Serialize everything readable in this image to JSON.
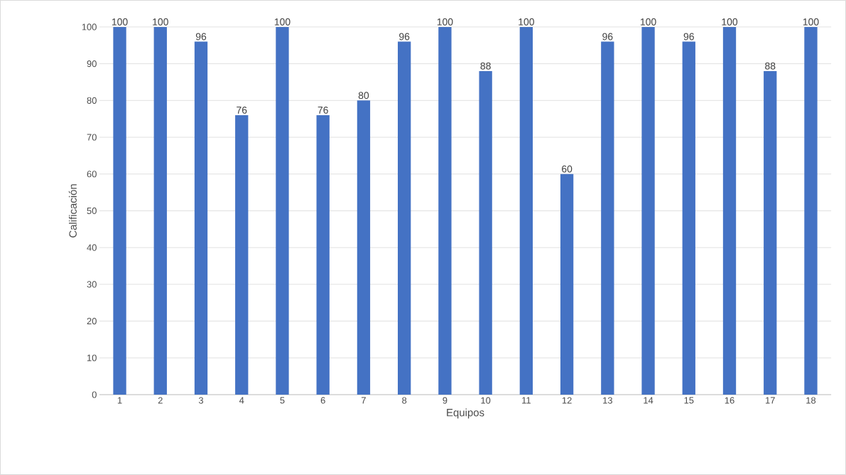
{
  "chart_data": {
    "type": "bar",
    "xlabel": "Equipos",
    "ylabel": "Calificación",
    "categories": [
      "1",
      "2",
      "3",
      "4",
      "5",
      "6",
      "7",
      "8",
      "9",
      "10",
      "11",
      "12",
      "13",
      "14",
      "15",
      "16",
      "17",
      "18"
    ],
    "values": [
      100,
      100,
      96,
      76,
      100,
      76,
      80,
      96,
      100,
      88,
      100,
      60,
      96,
      100,
      96,
      100,
      88,
      100
    ],
    "color": "#4472c4",
    "ylim": [
      0,
      100
    ],
    "yticks": [
      0,
      10,
      20,
      30,
      40,
      50,
      60,
      70,
      80,
      90,
      100
    ],
    "grid": "y",
    "data_labels": true
  }
}
